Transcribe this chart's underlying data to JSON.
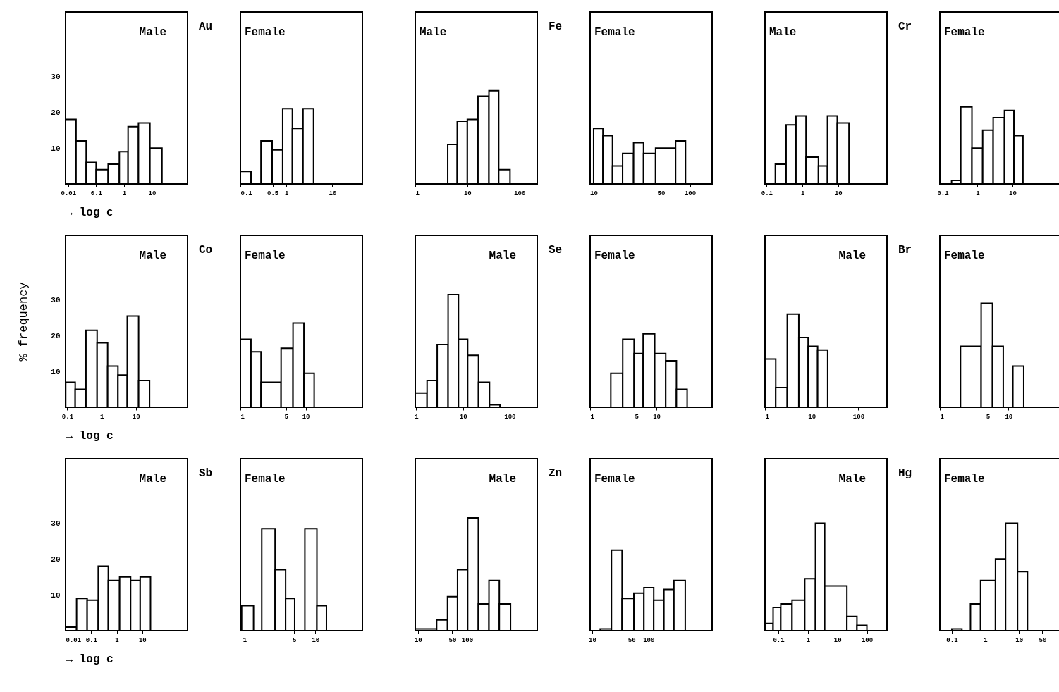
{
  "chart_data": [
    {
      "type": "histogram",
      "title": "Male",
      "annotations": [
        "Au"
      ],
      "xlabel": "→ log c",
      "log": "x",
      "xlim": [
        0.008,
        190
      ],
      "xticks": [
        0.01,
        0.1,
        1,
        10
      ],
      "ylim": [
        0,
        48
      ],
      "yticks": [
        10,
        20,
        30
      ],
      "color": "#000000",
      "bins": [
        0.008,
        0.019,
        0.044,
        0.1,
        0.27,
        0.68,
        1.4,
        3.3,
        8.5,
        23
      ],
      "values": [
        18,
        12,
        6,
        4,
        5.5,
        9,
        16,
        17,
        10
      ]
    },
    {
      "type": "histogram",
      "title": "Female",
      "log": "x",
      "xlim": [
        0.1,
        45
      ],
      "xticks": [
        0.1,
        0.5,
        1,
        10
      ],
      "ylim": [
        0,
        48
      ],
      "yticks": [
        10,
        20,
        30
      ],
      "tick_labels": "x",
      "color": "#000000",
      "bins": [
        0.1,
        0.17,
        0.28,
        0.49,
        0.83,
        1.35,
        2.3,
        3.9
      ],
      "values": [
        3.5,
        null,
        12,
        9.5,
        21,
        15.5,
        21
      ]
    },
    {
      "type": "histogram",
      "title": "Male",
      "annotations": [
        "Fe"
      ],
      "log": "x",
      "xlim": [
        1,
        220
      ],
      "xticks": [
        1,
        10,
        100
      ],
      "ylim": [
        0,
        48
      ],
      "yticks": [
        10,
        20,
        30
      ],
      "tick_labels": "x",
      "color": "#000000",
      "bins": [
        4.2,
        6.4,
        10,
        16,
        26,
        40,
        66
      ],
      "values": [
        11,
        17.5,
        18,
        24.5,
        26,
        4
      ]
    },
    {
      "type": "histogram",
      "title": "Female",
      "log": "x",
      "xlim": [
        9.2,
        170
      ],
      "xticks": [
        10,
        50,
        100
      ],
      "ylim": [
        0,
        48
      ],
      "yticks": [
        10,
        20,
        30
      ],
      "tick_labels": "x",
      "color": "#000000",
      "bins": [
        10,
        12.5,
        15.7,
        20,
        26,
        33,
        44,
        71,
        90
      ],
      "values": [
        15.5,
        13.5,
        5,
        8.5,
        11.5,
        8.5,
        10,
        12
      ]
    },
    {
      "type": "histogram",
      "title": "Male",
      "annotations": [
        "Cr"
      ],
      "log": "x",
      "xlim": [
        0.09,
        230
      ],
      "xticks": [
        0.1,
        1,
        10
      ],
      "ylim": [
        0,
        48
      ],
      "yticks": [
        10,
        20,
        30
      ],
      "tick_labels": "x",
      "color": "#000000",
      "bins": [
        0.175,
        0.35,
        0.66,
        1.26,
        2.8,
        5,
        9.4,
        20
      ],
      "values": [
        5.5,
        16.5,
        19,
        7.5,
        5,
        19,
        17
      ]
    },
    {
      "type": "histogram",
      "title": "Female",
      "log": "x",
      "xlim": [
        0.083,
        260
      ],
      "xticks": [
        0.1,
        1,
        10
      ],
      "ylim": [
        0,
        48
      ],
      "yticks": [
        10,
        20,
        30
      ],
      "tick_labels": "x",
      "color": "#000000",
      "bins": [
        0.18,
        0.33,
        0.69,
        1.4,
        2.8,
        5.9,
        11,
        20
      ],
      "values": [
        1,
        21.5,
        10,
        15,
        18.5,
        20.5,
        13.5
      ]
    },
    {
      "type": "histogram",
      "title": "Male",
      "annotations": [
        "Co"
      ],
      "xlabel": "→ log c",
      "ylabel": "% frequency",
      "log": "x",
      "xlim": [
        0.089,
        320
      ],
      "xticks": [
        0.1,
        1,
        10
      ],
      "ylim": [
        0,
        48
      ],
      "yticks": [
        10,
        20,
        30
      ],
      "color": "#000000",
      "bins": [
        0.09,
        0.17,
        0.35,
        0.74,
        1.5,
        3,
        5.6,
        12,
        25
      ],
      "values": [
        7,
        5,
        21.5,
        18,
        11.5,
        9,
        25.5,
        7.5
      ]
    },
    {
      "type": "histogram",
      "title": "Female",
      "log": "x",
      "xlim": [
        1,
        74
      ],
      "xticks": [
        1,
        5,
        10
      ],
      "ylim": [
        0,
        48
      ],
      "yticks": [
        10,
        20,
        30
      ],
      "tick_labels": "x",
      "color": "#000000",
      "bins": [
        1,
        1.45,
        2.07,
        4.2,
        6.4,
        9.4,
        13.5
      ],
      "values": [
        19,
        15.5,
        7,
        16.5,
        23.5,
        9.5
      ]
    },
    {
      "type": "histogram",
      "title": "Male",
      "annotations": [
        "Se"
      ],
      "log": "x",
      "xlim": [
        0.95,
        390
      ],
      "xticks": [
        1,
        10,
        100
      ],
      "ylim": [
        0,
        48
      ],
      "yticks": [
        10,
        20,
        30
      ],
      "tick_labels": "x",
      "color": "#000000",
      "bins": [
        0.95,
        1.7,
        2.8,
        4.8,
        8,
        12.6,
        21.5,
        37,
        62
      ],
      "values": [
        4,
        7.5,
        17.5,
        31.5,
        19,
        14.5,
        7,
        0.7
      ]
    },
    {
      "type": "histogram",
      "title": "Female",
      "log": "x",
      "xlim": [
        1,
        69
      ],
      "xticks": [
        1,
        5,
        10
      ],
      "ylim": [
        0,
        48
      ],
      "yticks": [
        10,
        20,
        30
      ],
      "tick_labels": "x",
      "color": "#000000",
      "bins": [
        2.05,
        3.1,
        4.6,
        6.3,
        9.4,
        13.8,
        20,
        29
      ],
      "values": [
        9.5,
        19,
        15,
        20.5,
        15,
        13,
        5
      ]
    },
    {
      "type": "histogram",
      "title": "Male",
      "annotations": [
        "Br"
      ],
      "log": "x",
      "xlim": [
        1,
        410
      ],
      "xticks": [
        1,
        10,
        100
      ],
      "ylim": [
        0,
        48
      ],
      "yticks": [
        10,
        20,
        30
      ],
      "tick_labels": "x",
      "color": "#000000",
      "bins": [
        1,
        1.7,
        3,
        5.3,
        8.4,
        13.4,
        22
      ],
      "values": [
        13.5,
        5.5,
        26,
        19.5,
        17,
        16
      ]
    },
    {
      "type": "histogram",
      "title": "Female",
      "log": "x",
      "xlim": [
        1,
        60
      ],
      "xticks": [
        1,
        5,
        10
      ],
      "ylim": [
        0,
        48
      ],
      "yticks": [
        10,
        20,
        30
      ],
      "tick_labels": "x",
      "color": "#000000",
      "bins": [
        2,
        4,
        5.85,
        8.4,
        11.6,
        16.7
      ],
      "values": [
        17,
        29,
        17,
        null,
        11.5
      ]
    },
    {
      "type": "histogram",
      "title": "Male",
      "annotations": [
        "Sb"
      ],
      "xlabel": "→ log c",
      "log": "x",
      "xlim": [
        0.01,
        590
      ],
      "xticks": [
        0.01,
        0.1,
        1,
        10
      ],
      "ylim": [
        0,
        48
      ],
      "yticks": [
        10,
        20,
        30
      ],
      "color": "#000000",
      "bins": [
        0.01,
        0.027,
        0.07,
        0.19,
        0.47,
        1.3,
        3.5,
        8.3,
        21
      ],
      "values": [
        1,
        9,
        8.5,
        18,
        14,
        15,
        14,
        15
      ]
    },
    {
      "type": "histogram",
      "title": "Female",
      "log": "x",
      "xlim": [
        0.875,
        46
      ],
      "xticks": [
        1,
        5,
        10
      ],
      "ylim": [
        0,
        48
      ],
      "yticks": [
        10,
        20,
        30
      ],
      "tick_labels": "x",
      "color": "#000000",
      "bins": [
        0.91,
        1.34,
        1.75,
        2.7,
        3.8,
        5.1,
        7.1,
        10.5,
        14.3
      ],
      "values": [
        7,
        null,
        28.5,
        17,
        9,
        null,
        28.5,
        7
      ]
    },
    {
      "type": "histogram",
      "title": "Male",
      "annotations": [
        "Zn"
      ],
      "log": "x",
      "xlim": [
        8.8,
        2700
      ],
      "xticks": [
        10,
        50,
        100
      ],
      "ylim": [
        0,
        48
      ],
      "yticks": [
        10,
        20,
        30
      ],
      "tick_labels": "x",
      "color": "#000000",
      "bins": [
        8.8,
        24,
        40,
        64,
        103,
        170,
        280,
        455,
        770
      ],
      "values": [
        0.5,
        3,
        9.5,
        17,
        31.5,
        7.5,
        14,
        7.5
      ]
    },
    {
      "type": "histogram",
      "title": "Female",
      "log": "x",
      "xlim": [
        9.2,
        1350
      ],
      "xticks": [
        10,
        50,
        100
      ],
      "ylim": [
        0,
        48
      ],
      "yticks": [
        10,
        20,
        30
      ],
      "tick_labels": "x",
      "color": "#000000",
      "bins": [
        13.9,
        22,
        34,
        55,
        83,
        124,
        188,
        283,
        450
      ],
      "values": [
        0.5,
        22.5,
        9,
        10.5,
        12,
        8.5,
        11.5,
        14
      ]
    },
    {
      "type": "histogram",
      "title": "Male",
      "annotations": [
        "Hg"
      ],
      "log": "x",
      "xlim": [
        0.035,
        480
      ],
      "xticks": [
        0.1,
        1,
        10,
        100
      ],
      "ylim": [
        0,
        48
      ],
      "yticks": [
        10,
        20,
        30
      ],
      "tick_labels": "x",
      "color": "#000000",
      "bins": [
        0.035,
        0.066,
        0.12,
        0.29,
        0.78,
        1.8,
        3.7,
        21,
        46,
        100
      ],
      "values": [
        2,
        6.5,
        7.5,
        8.5,
        14.5,
        30,
        12.5,
        4,
        1.5
      ]
    },
    {
      "type": "histogram",
      "title": "Female",
      "log": "x",
      "xlim": [
        0.044,
        190
      ],
      "xticks": [
        0.1,
        1,
        10,
        50
      ],
      "ylim": [
        0,
        48
      ],
      "yticks": [
        10,
        20,
        30
      ],
      "tick_labels": "x",
      "color": "#000000",
      "bins": [
        0.1,
        0.2,
        0.36,
        0.72,
        2,
        4,
        9.1,
        18
      ],
      "values": [
        0.5,
        null,
        7.5,
        14,
        20,
        30,
        16.5
      ]
    }
  ]
}
